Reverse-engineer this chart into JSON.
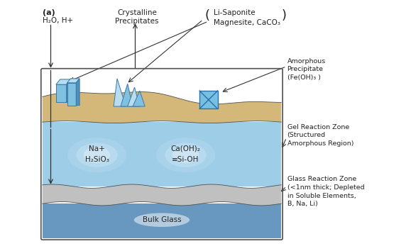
{
  "fig_width": 5.72,
  "fig_height": 3.54,
  "dpi": 100,
  "bg_color": "#ffffff",
  "label_a": "(a)",
  "label_h2o": "H₂O, H+",
  "label_crystalline": "Crystalline\nPrecipitates",
  "label_lisaponite": "Li-Saponite\nMagnesite, CaCO₃",
  "label_amorphous": "Amorphous\nPrecipitate\n(Fe(OH)₃ )",
  "label_gel": "Gel Reaction Zone\n(Structured\nAmorphous Region)",
  "label_glass_zone": "Glass Reaction Zone\n(<1nm thick; Depleted\nin Soluble Elements,\nB, Na, Li)",
  "label_na": "Na+\nH₂SiO₃",
  "label_ca": "Ca(OH)₂\n≡Si-OH",
  "label_bulk": "Bulk Glass",
  "sand_color": "#d4b87a",
  "gel_color": "#9ecde8",
  "gel_color_dark": "#7ab8d8",
  "glass_zone_color": "#c0c0c0",
  "bulk_glass_color": "#6898c0",
  "border_color": "#505050",
  "crystal_color_light": "#b8ddf0",
  "crystal_color_mid": "#80c0e0",
  "crystal_color_dark": "#5090b8",
  "crystal_edge": "#3878a8",
  "box_color": "#78c0e0",
  "box_edge": "#2870b0",
  "text_color": "#222222",
  "arrow_color": "#333333"
}
